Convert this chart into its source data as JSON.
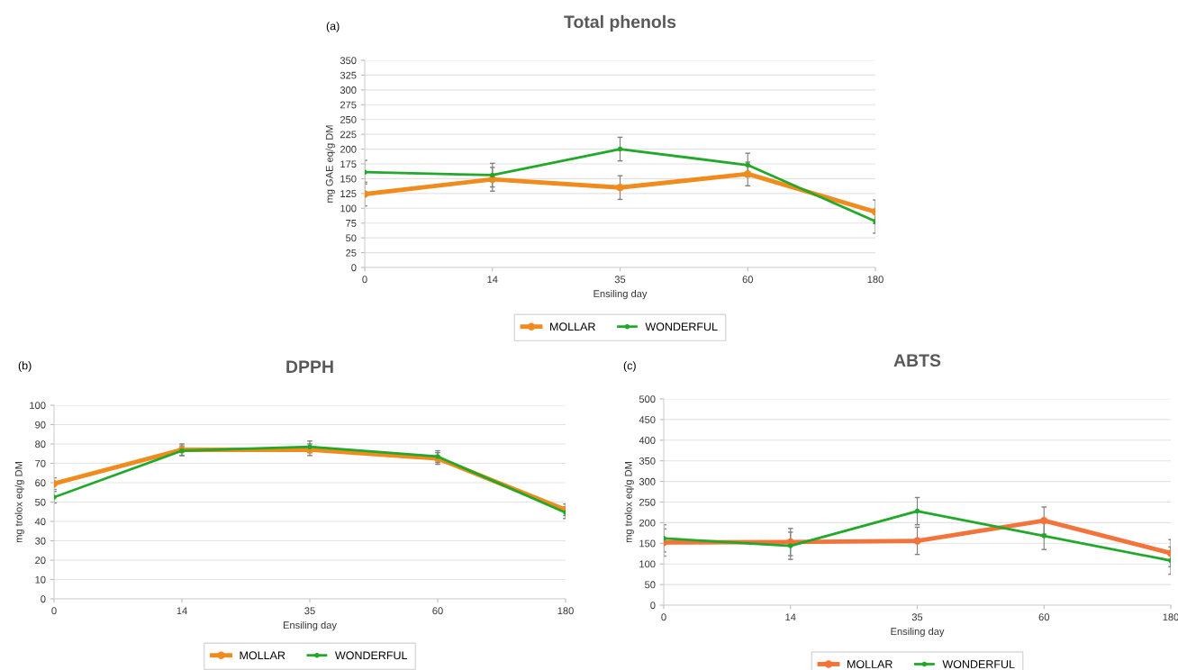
{
  "chart_data": [
    {
      "type": "line",
      "title": "Total phenols",
      "xlabel": "Ensiling day",
      "ylabel": "mg GAE eq/g DM",
      "annotations": [
        "(a)"
      ],
      "categories": [
        "0",
        "14",
        "35",
        "60",
        "180"
      ],
      "ylim": [
        0,
        350
      ],
      "yticks": [
        0,
        25,
        50,
        75,
        100,
        125,
        150,
        175,
        200,
        225,
        250,
        275,
        300,
        325,
        350
      ],
      "grid": "y",
      "legend": "bottom",
      "marker": "circle",
      "line_style": "solid",
      "series": [
        {
          "name": "MOLLAR",
          "color": "#f08c1e",
          "values": [
            124,
            149,
            135,
            158,
            94
          ],
          "errors": [
            20,
            20,
            20,
            20,
            20
          ]
        },
        {
          "name": "WONDERFUL",
          "color": "#22a82a",
          "values": [
            161,
            156,
            200,
            173,
            78
          ],
          "errors": [
            20,
            20,
            20,
            20,
            20
          ]
        }
      ]
    },
    {
      "type": "line",
      "title": "DPPH",
      "xlabel": "Ensiling day",
      "ylabel": "mg trolox eq/g DM",
      "annotations": [
        "(b)"
      ],
      "categories": [
        "0",
        "14",
        "35",
        "60",
        "180"
      ],
      "ylim": [
        0,
        100
      ],
      "yticks": [
        0,
        10,
        20,
        30,
        40,
        50,
        60,
        70,
        80,
        90,
        100
      ],
      "grid": "y",
      "legend": "bottom",
      "marker": "circle",
      "line_style": "solid",
      "series": [
        {
          "name": "MOLLAR",
          "color": "#f08c1e",
          "values": [
            59.5,
            77,
            77,
            72.5,
            46
          ],
          "errors": [
            3,
            3,
            3,
            3,
            3
          ]
        },
        {
          "name": "WONDERFUL",
          "color": "#22a82a",
          "values": [
            52.5,
            76.5,
            78.5,
            73.5,
            44.5
          ],
          "errors": [
            3,
            2.5,
            3,
            3,
            3
          ]
        }
      ]
    },
    {
      "type": "line",
      "title": "ABTS",
      "xlabel": "Ensiling day",
      "ylabel": "mg trolox eq/g DM",
      "annotations": [
        "(c)"
      ],
      "categories": [
        "0",
        "14",
        "35",
        "60",
        "180"
      ],
      "ylim": [
        0,
        500
      ],
      "yticks": [
        0,
        50,
        100,
        150,
        200,
        250,
        300,
        350,
        400,
        450,
        500
      ],
      "grid": "y",
      "legend": "bottom",
      "marker": "circle",
      "line_style": "solid",
      "series": [
        {
          "name": "MOLLAR",
          "color": "#f4733a",
          "values": [
            152,
            153,
            156,
            205,
            126
          ],
          "errors": [
            33,
            33,
            33,
            33,
            33
          ]
        },
        {
          "name": "WONDERFUL",
          "color": "#22a82a",
          "values": [
            162,
            144,
            228,
            168,
            108
          ],
          "errors": [
            33,
            33,
            33,
            33,
            33
          ]
        }
      ]
    }
  ]
}
